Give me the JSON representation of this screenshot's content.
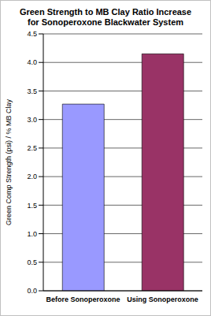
{
  "chart_data": {
    "type": "bar",
    "title": "Green Strength to MB Clay Ratio Increase for Sonoperoxone Blackwater System",
    "y_label": "Green Comp Strength (psi) / % MB Clay",
    "categories": [
      "Before Sonoperoxone",
      "Using Sonoperoxone"
    ],
    "values": [
      3.27,
      4.15
    ],
    "colors": [
      "#9999ff",
      "#993366"
    ],
    "ylim": [
      0,
      4.5
    ],
    "yticks": [
      {
        "value": 0,
        "label": "0.0"
      },
      0.5,
      {
        "value": 1,
        "label": "1.0"
      },
      1.5,
      {
        "value": 2,
        "label": "2.0"
      },
      2.5,
      {
        "value": 3,
        "label": "3.0"
      },
      3.5,
      {
        "value": 4,
        "label": "4.0"
      },
      4.5
    ],
    "grid": true
  }
}
